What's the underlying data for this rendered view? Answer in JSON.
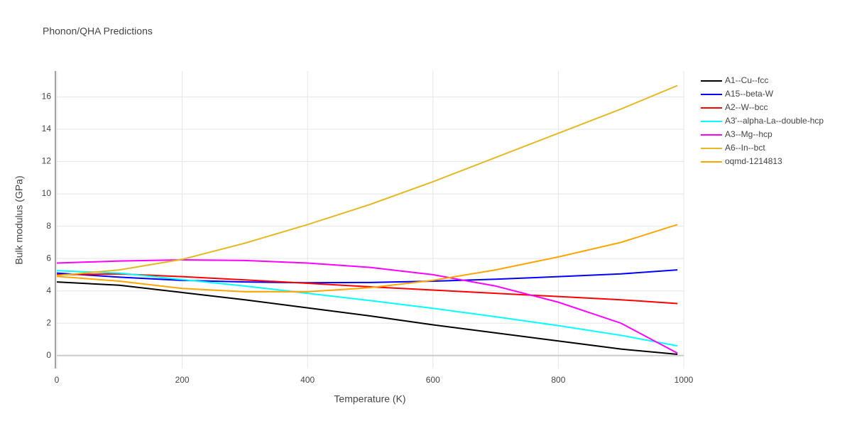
{
  "chart_data": {
    "type": "line",
    "title": "Phonon/QHA Predictions",
    "x_label": "Temperature (K)",
    "y_label": "Bulk modulus (GPa)",
    "x": [
      0,
      100,
      200,
      300,
      400,
      500,
      600,
      700,
      800,
      900,
      990
    ],
    "xlim": [
      0,
      1000
    ],
    "xticks": [
      0,
      200,
      400,
      600,
      800,
      1000
    ],
    "ylim": [
      -0.8,
      17.6
    ],
    "yticks": [
      0,
      2,
      4,
      6,
      8,
      10,
      12,
      14,
      16
    ],
    "grid": true,
    "legend": "right",
    "series": [
      {
        "name": "A1--Cu--fcc",
        "color": "#000000",
        "values": [
          4.55,
          4.35,
          3.9,
          3.45,
          2.95,
          2.45,
          1.9,
          1.4,
          0.9,
          0.4,
          0.08
        ]
      },
      {
        "name": "A15--beta-W",
        "color": "#0000ff",
        "values": [
          5.1,
          4.85,
          4.65,
          4.55,
          4.5,
          4.52,
          4.6,
          4.72,
          4.88,
          5.05,
          5.3
        ]
      },
      {
        "name": "A2--W--bcc",
        "color": "#ff0000",
        "values": [
          5.0,
          5.05,
          4.88,
          4.68,
          4.47,
          4.25,
          4.05,
          3.85,
          3.65,
          3.45,
          3.22
        ]
      },
      {
        "name": "A3'--alpha-La--double-hcp",
        "color": "#00ffff",
        "values": [
          5.25,
          5.1,
          4.7,
          4.3,
          3.85,
          3.4,
          2.92,
          2.4,
          1.85,
          1.25,
          0.6
        ]
      },
      {
        "name": "A3--Mg--hcp",
        "color": "#ff00ff",
        "values": [
          5.72,
          5.85,
          5.92,
          5.88,
          5.72,
          5.45,
          5.0,
          4.3,
          3.3,
          2.0,
          0.15
        ]
      },
      {
        "name": "A6--In--bct",
        "color": "#e6b822",
        "values": [
          4.95,
          5.3,
          5.95,
          6.95,
          8.1,
          9.35,
          10.75,
          12.25,
          13.75,
          15.25,
          16.7
        ]
      },
      {
        "name": "oqmd-1214813",
        "color": "#ffa500",
        "values": [
          4.9,
          4.6,
          4.15,
          3.95,
          3.95,
          4.2,
          4.65,
          5.3,
          6.1,
          7.0,
          8.1
        ]
      }
    ]
  }
}
